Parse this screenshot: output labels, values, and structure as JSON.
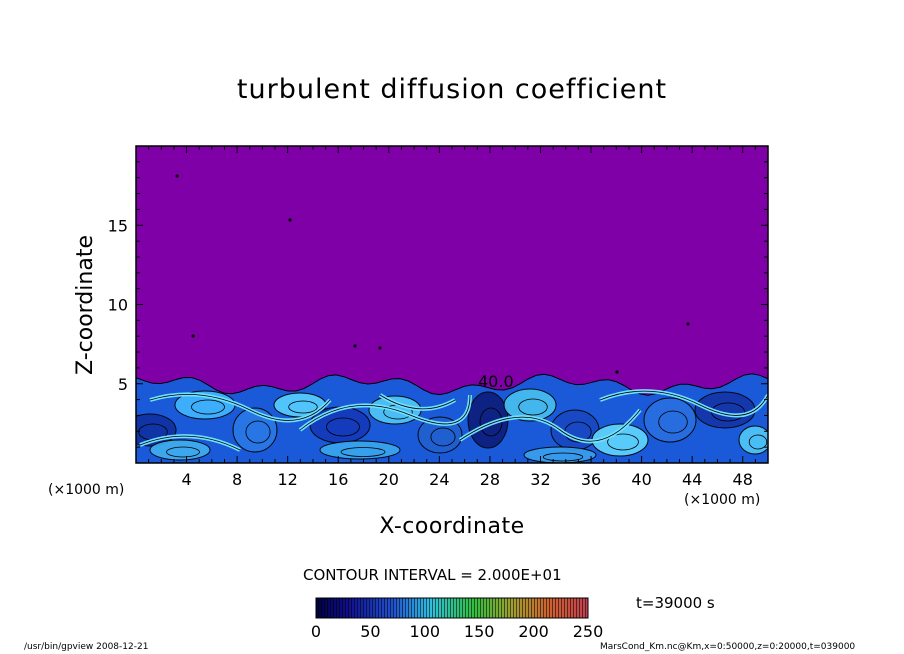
{
  "chart_data": {
    "type": "heatmap",
    "title": "turbulent diffusion coefficient",
    "xlabel": "X-coordinate",
    "ylabel": "Z-coordinate",
    "x_unit": "(×1000 m)",
    "xlim": [
      0,
      50
    ],
    "ylim": [
      0,
      20
    ],
    "x_ticks": [
      4,
      8,
      12,
      16,
      20,
      24,
      28,
      32,
      36,
      40,
      44,
      48
    ],
    "y_ticks": [
      5,
      10,
      15
    ],
    "contour_interval": "CONTOUR INTERVAL = 2.000E+01",
    "contour_label": "40.0",
    "colorbar": {
      "min": 0,
      "max": 250,
      "ticks": [
        0,
        50,
        100,
        150,
        200,
        250
      ]
    },
    "time": "t=39000 s",
    "background_color": "#8000a8",
    "boundary_layer_top_km": 5.2
  },
  "footer": {
    "left": "/usr/bin/gpview  2008-12-21",
    "right": "MarsCond_Km.nc@Km,x=0:50000,z=0:20000,t=039000"
  }
}
